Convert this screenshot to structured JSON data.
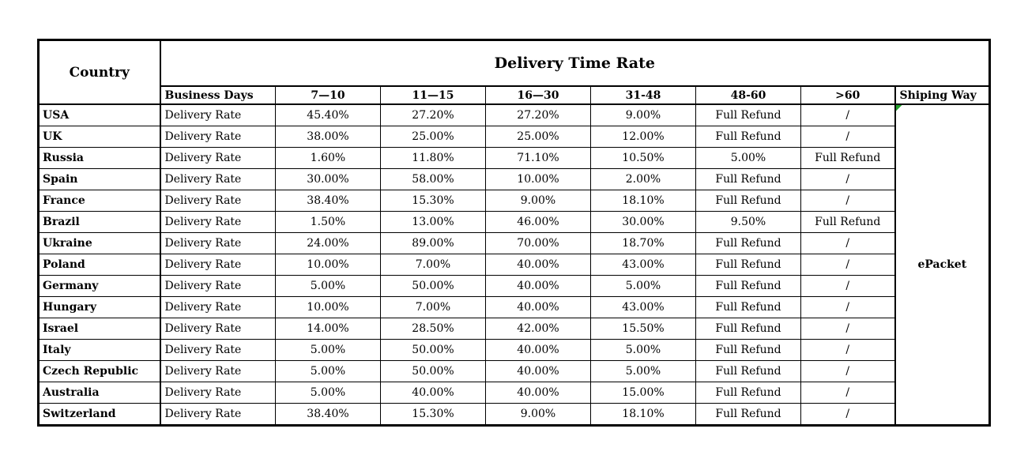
{
  "chart_data": {
    "type": "table",
    "title": "Delivery Time Rate",
    "corner_header": "Country",
    "sub_headers": [
      "Business Days",
      "7—10",
      "11—15",
      "16—30",
      "31-48",
      "48-60",
      ">60",
      "Shiping Way"
    ],
    "row_label": "Delivery Rate",
    "shipping_method": "ePacket",
    "rows": [
      {
        "country": "USA",
        "rates": [
          "45.40%",
          "27.20%",
          "27.20%",
          "9.00%",
          "Full Refund",
          "/"
        ]
      },
      {
        "country": "UK",
        "rates": [
          "38.00%",
          "25.00%",
          "25.00%",
          "12.00%",
          "Full Refund",
          "/"
        ]
      },
      {
        "country": "Russia",
        "rates": [
          "1.60%",
          "11.80%",
          "71.10%",
          "10.50%",
          "5.00%",
          "Full Refund"
        ]
      },
      {
        "country": "Spain",
        "rates": [
          "30.00%",
          "58.00%",
          "10.00%",
          "2.00%",
          "Full Refund",
          "/"
        ]
      },
      {
        "country": "France",
        "rates": [
          "38.40%",
          "15.30%",
          "9.00%",
          "18.10%",
          "Full Refund",
          "/"
        ]
      },
      {
        "country": "Brazil",
        "rates": [
          "1.50%",
          "13.00%",
          "46.00%",
          "30.00%",
          "9.50%",
          "Full Refund"
        ]
      },
      {
        "country": "Ukraine",
        "rates": [
          "24.00%",
          "89.00%",
          "70.00%",
          "18.70%",
          "Full Refund",
          "/"
        ]
      },
      {
        "country": "Poland",
        "rates": [
          "10.00%",
          "7.00%",
          "40.00%",
          "43.00%",
          "Full Refund",
          "/"
        ]
      },
      {
        "country": "Germany",
        "rates": [
          "5.00%",
          "50.00%",
          "40.00%",
          "5.00%",
          "Full Refund",
          "/"
        ]
      },
      {
        "country": "Hungary",
        "rates": [
          "10.00%",
          "7.00%",
          "40.00%",
          "43.00%",
          "Full Refund",
          "/"
        ]
      },
      {
        "country": "Israel",
        "rates": [
          "14.00%",
          "28.50%",
          "42.00%",
          "15.50%",
          "Full Refund",
          "/"
        ]
      },
      {
        "country": "Italy",
        "rates": [
          "5.00%",
          "50.00%",
          "40.00%",
          "5.00%",
          "Full Refund",
          "/"
        ]
      },
      {
        "country": "Czech Republic",
        "rates": [
          "5.00%",
          "50.00%",
          "40.00%",
          "5.00%",
          "Full Refund",
          "/"
        ]
      },
      {
        "country": "Australia",
        "rates": [
          "5.00%",
          "40.00%",
          "40.00%",
          "15.00%",
          "Full Refund",
          "/"
        ]
      },
      {
        "country": "Switzerland",
        "rates": [
          "38.40%",
          "15.30%",
          "9.00%",
          "18.10%",
          "Full Refund",
          "/"
        ]
      }
    ]
  },
  "colors": {
    "border": "#000000",
    "background": "#ffffff",
    "error_indicator_green": "#22a02c"
  }
}
